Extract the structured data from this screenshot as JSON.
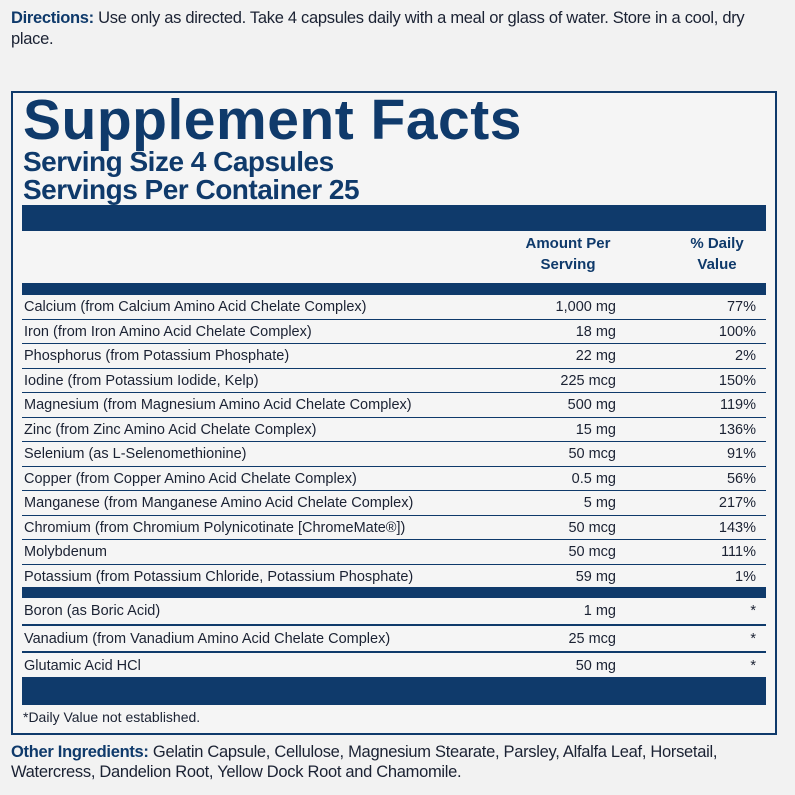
{
  "directions": {
    "label": "Directions:",
    "text": " Use only as directed. Take 4 capsules daily with a meal or glass of water. Store in a cool, dry place."
  },
  "facts": {
    "title": "Supplement Facts",
    "serving_size": "Serving Size 4 Capsules",
    "servings_per_container": "Servings Per Container 25",
    "col_amount": "Amount Per Serving",
    "col_dv": "% Daily Value",
    "rows": [
      {
        "name": "Calcium (from Calcium Amino Acid Chelate Complex)",
        "amount": "1,000 mg",
        "dv": "77%"
      },
      {
        "name": "Iron (from Iron Amino Acid Chelate Complex)",
        "amount": "18 mg",
        "dv": "100%"
      },
      {
        "name": "Phosphorus (from Potassium Phosphate)",
        "amount": "22 mg",
        "dv": "2%"
      },
      {
        "name": "Iodine (from Potassium Iodide, Kelp)",
        "amount": "225 mcg",
        "dv": "150%"
      },
      {
        "name": "Magnesium (from Magnesium Amino Acid Chelate Complex)",
        "amount": "500 mg",
        "dv": "119%"
      },
      {
        "name": "Zinc (from Zinc Amino Acid Chelate Complex)",
        "amount": "15 mg",
        "dv": "136%"
      },
      {
        "name": "Selenium (as L-Selenomethionine)",
        "amount": "50 mcg",
        "dv": "91%"
      },
      {
        "name": "Copper (from Copper Amino Acid Chelate Complex)",
        "amount": "0.5 mg",
        "dv": "56%"
      },
      {
        "name": "Manganese (from Manganese Amino Acid Chelate Complex)",
        "amount": "5 mg",
        "dv": "217%"
      },
      {
        "name": "Chromium (from Chromium Polynicotinate [ChromeMate®])",
        "amount": "50 mcg",
        "dv": "143%"
      },
      {
        "name": "Molybdenum",
        "amount": "50 mcg",
        "dv": "111%"
      },
      {
        "name": "Potassium (from Potassium Chloride, Potassium Phosphate)",
        "amount": "59 mg",
        "dv": "1%"
      }
    ],
    "rows2": [
      {
        "name": "Boron (as Boric Acid)",
        "amount": "1 mg",
        "dv": "*"
      },
      {
        "name": "Vanadium (from Vanadium Amino Acid Chelate Complex)",
        "amount": "25 mcg",
        "dv": "*"
      },
      {
        "name": "Glutamic Acid HCl",
        "amount": "50 mg",
        "dv": "*"
      }
    ],
    "footnote": "*Daily Value not established."
  },
  "other": {
    "label": "Other Ingredients:",
    "text": " Gelatin Capsule, Cellulose, Magnesium Stearate, Parsley, Alfalfa Leaf, Horsetail, Watercress, Dandelion Root, Yellow Dock Root and Chamomile."
  },
  "colors": {
    "navy": "#0f3a6b"
  }
}
